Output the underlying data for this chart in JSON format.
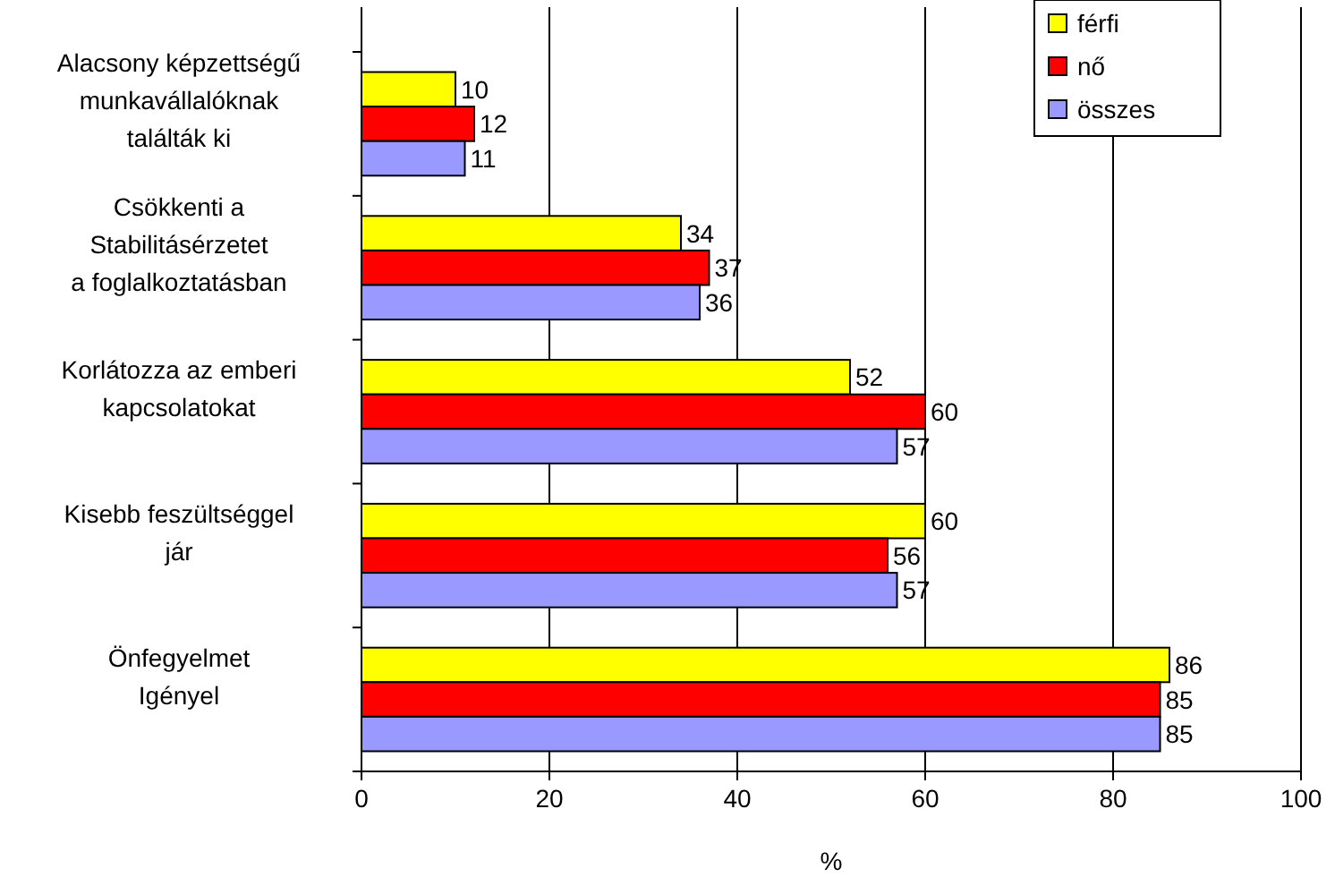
{
  "chart_data": {
    "type": "bar",
    "orientation": "horizontal",
    "xlabel": "%",
    "categories": [
      "Alacsony képzettségű\nmunkavállalóknak\ntalálták ki",
      "Csökkenti a\nStabilitásérzetet\na foglalkoztatásban",
      "Korlátozza az emberi\nkapcsolatokat",
      "Kisebb feszültséggel\njár",
      "Önfegyelmet\nIgényel"
    ],
    "series": [
      {
        "name": "férfi",
        "color": "#ffff00",
        "values": [
          10,
          34,
          52,
          60,
          86
        ]
      },
      {
        "name": "nő",
        "color": "#ff0000",
        "values": [
          12,
          37,
          60,
          56,
          85
        ]
      },
      {
        "name": "összes",
        "color": "#9999ff",
        "values": [
          11,
          36,
          57,
          57,
          85
        ]
      }
    ],
    "xlim": [
      0,
      100
    ],
    "xticks": [
      0,
      20,
      40,
      60,
      80,
      100
    ],
    "grid": "x",
    "legend": "top right",
    "data_labels": true
  }
}
